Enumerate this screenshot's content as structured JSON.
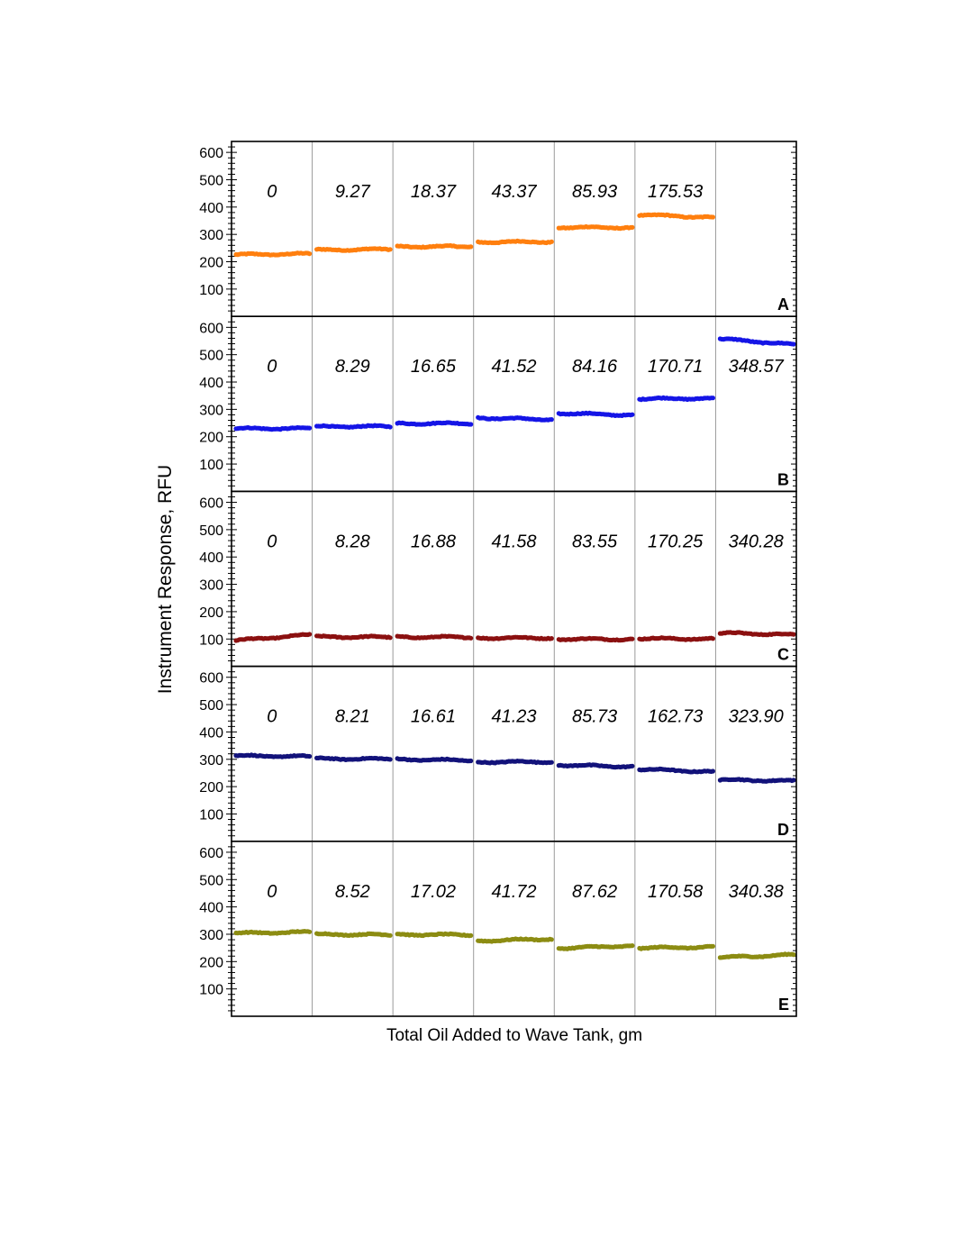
{
  "chart_data": {
    "type": "scatter",
    "ylabel": "Instrument Response,  RFU",
    "xlabel": "Total Oil Added to Wave Tank, gm",
    "ylim": [
      0,
      640
    ],
    "yticks": [
      100,
      200,
      300,
      400,
      500,
      600
    ],
    "segments_per_panel": 7,
    "grid": "vertical separators between segments",
    "panels": [
      {
        "id": "A",
        "color": "#ff7f0e",
        "labels": [
          "0",
          "9.27",
          "18.37",
          "43.37",
          "85.93",
          "175.53",
          ""
        ],
        "levels": [
          [
            226,
            229
          ],
          [
            243,
            246
          ],
          [
            255,
            256
          ],
          [
            272,
            273
          ],
          [
            326,
            325
          ],
          [
            372,
            362
          ],
          null
        ]
      },
      {
        "id": "B",
        "color": "#1515e6",
        "labels": [
          "0",
          "8.29",
          "16.65",
          "41.52",
          "84.16",
          "170.71",
          "348.57"
        ],
        "levels": [
          [
            230,
            230
          ],
          [
            237,
            238
          ],
          [
            248,
            249
          ],
          [
            269,
            263
          ],
          [
            286,
            279
          ],
          [
            339,
            340
          ],
          [
            558,
            537
          ]
        ]
      },
      {
        "id": "C",
        "color": "#8b1010",
        "labels": [
          "0",
          "8.28",
          "16.88",
          "41.58",
          "83.55",
          "170.25",
          "340.28"
        ],
        "levels": [
          [
            95,
            115
          ],
          [
            108,
            107
          ],
          [
            107,
            107
          ],
          [
            104,
            104
          ],
          [
            100,
            99
          ],
          [
            102,
            100
          ],
          [
            122,
            116
          ]
        ]
      },
      {
        "id": "D",
        "color": "#12127a",
        "labels": [
          "0",
          "8.21",
          "16.61",
          "41.23",
          "85.73",
          "162.73",
          "323.90"
        ],
        "levels": [
          [
            313,
            310
          ],
          [
            302,
            301
          ],
          [
            300,
            296
          ],
          [
            290,
            291
          ],
          [
            279,
            273
          ],
          [
            264,
            254
          ],
          [
            225,
            221
          ]
        ]
      },
      {
        "id": "E",
        "color": "#8c8c12",
        "labels": [
          "0",
          "8.52",
          "17.02",
          "41.72",
          "87.62",
          "170.58",
          "340.38"
        ],
        "levels": [
          [
            304,
            308
          ],
          [
            300,
            298
          ],
          [
            299,
            298
          ],
          [
            276,
            283
          ],
          [
            249,
            258
          ],
          [
            250,
            253
          ],
          [
            215,
            225
          ]
        ]
      }
    ]
  }
}
